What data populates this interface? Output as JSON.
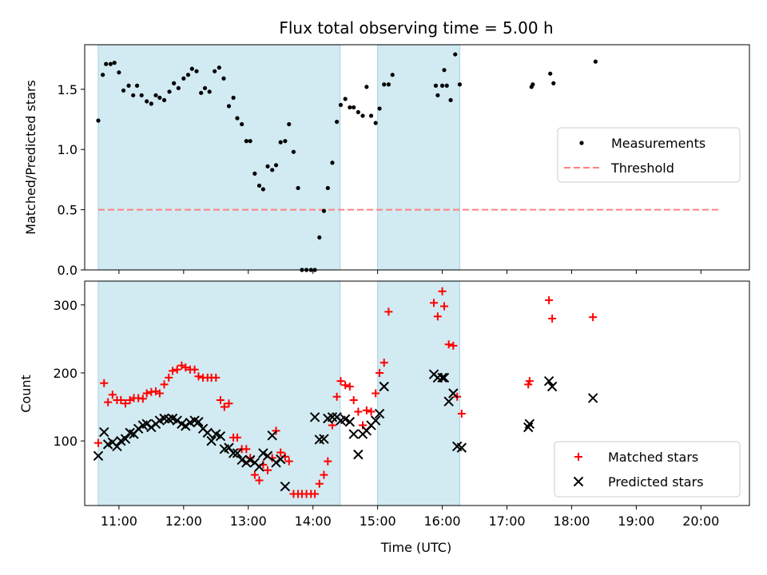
{
  "title": "Flux total observing time = 5.00 h",
  "colors": {
    "shade": "#add8e6",
    "measurement": "#000000",
    "threshold": "#ff8080",
    "matched": "#ff0000",
    "predicted": "#000000"
  },
  "chart_data": [
    {
      "type": "scatter",
      "ylabel": "Matched/Predicted stars",
      "xlim": [
        10.47,
        20.75
      ],
      "ylim": [
        0,
        1.87
      ],
      "yticks": [
        0.0,
        0.5,
        1.0,
        1.5
      ],
      "ytick_labels": [
        "0.0",
        "0.5",
        "1.0",
        "1.5"
      ],
      "shaded_intervals": [
        [
          10.68,
          14.42
        ],
        [
          15.0,
          16.27
        ]
      ],
      "legend": {
        "placement": "center-right",
        "items": [
          "Measurements",
          "Threshold"
        ]
      },
      "threshold": {
        "name": "Threshold",
        "y": 0.5,
        "x": [
          10.68,
          20.28
        ]
      },
      "series": [
        {
          "name": "Measurements",
          "marker": "dot",
          "points": [
            [
              10.68,
              1.24
            ],
            [
              10.75,
              1.62
            ],
            [
              10.8,
              1.71
            ],
            [
              10.87,
              1.71
            ],
            [
              10.93,
              1.72
            ],
            [
              11.0,
              1.64
            ],
            [
              11.07,
              1.49
            ],
            [
              11.15,
              1.53
            ],
            [
              11.22,
              1.45
            ],
            [
              11.28,
              1.53
            ],
            [
              11.35,
              1.45
            ],
            [
              11.43,
              1.4
            ],
            [
              11.5,
              1.38
            ],
            [
              11.57,
              1.45
            ],
            [
              11.63,
              1.43
            ],
            [
              11.7,
              1.41
            ],
            [
              11.78,
              1.48
            ],
            [
              11.85,
              1.55
            ],
            [
              11.92,
              1.51
            ],
            [
              12.0,
              1.59
            ],
            [
              12.07,
              1.62
            ],
            [
              12.13,
              1.67
            ],
            [
              12.2,
              1.65
            ],
            [
              12.27,
              1.47
            ],
            [
              12.33,
              1.51
            ],
            [
              12.4,
              1.48
            ],
            [
              12.48,
              1.65
            ],
            [
              12.55,
              1.68
            ],
            [
              12.62,
              1.59
            ],
            [
              12.7,
              1.36
            ],
            [
              12.77,
              1.43
            ],
            [
              12.83,
              1.26
            ],
            [
              12.9,
              1.21
            ],
            [
              12.97,
              1.07
            ],
            [
              13.03,
              1.07
            ],
            [
              13.1,
              0.8
            ],
            [
              13.17,
              0.7
            ],
            [
              13.23,
              0.67
            ],
            [
              13.3,
              0.86
            ],
            [
              13.37,
              0.83
            ],
            [
              13.43,
              0.87
            ],
            [
              13.5,
              1.06
            ],
            [
              13.57,
              1.07
            ],
            [
              13.63,
              1.21
            ],
            [
              13.7,
              0.98
            ],
            [
              13.77,
              0.68
            ],
            [
              13.83,
              0.0
            ],
            [
              13.9,
              0.0
            ],
            [
              13.97,
              0.0
            ],
            [
              14.03,
              0.0
            ],
            [
              14.1,
              0.27
            ],
            [
              14.17,
              0.49
            ],
            [
              14.23,
              0.68
            ],
            [
              14.3,
              0.89
            ],
            [
              14.37,
              1.23
            ],
            [
              14.43,
              1.37
            ],
            [
              14.5,
              1.42
            ],
            [
              14.57,
              1.35
            ],
            [
              14.63,
              1.35
            ],
            [
              14.7,
              1.31
            ],
            [
              14.77,
              1.28
            ],
            [
              14.83,
              1.52
            ],
            [
              14.9,
              1.28
            ],
            [
              14.97,
              1.22
            ],
            [
              15.03,
              1.34
            ],
            [
              15.1,
              1.54
            ],
            [
              15.17,
              1.54
            ],
            [
              15.23,
              1.62
            ],
            [
              15.9,
              1.53
            ],
            [
              15.93,
              1.45
            ],
            [
              16.0,
              1.53
            ],
            [
              16.03,
              1.66
            ],
            [
              16.07,
              1.53
            ],
            [
              16.13,
              1.41
            ],
            [
              16.2,
              1.79
            ],
            [
              16.27,
              1.54
            ],
            [
              17.38,
              1.52
            ],
            [
              17.4,
              1.54
            ],
            [
              17.67,
              1.63
            ],
            [
              17.72,
              1.55
            ],
            [
              18.37,
              1.73
            ]
          ]
        }
      ]
    },
    {
      "type": "scatter",
      "xlabel": "Time (UTC)",
      "ylabel": "Count",
      "xlim": [
        10.47,
        20.75
      ],
      "ylim": [
        5,
        335
      ],
      "yticks": [
        100,
        200,
        300
      ],
      "xticks": [
        11,
        12,
        13,
        14,
        15,
        16,
        17,
        18,
        19,
        20
      ],
      "xtick_labels": [
        "11:00",
        "12:00",
        "13:00",
        "14:00",
        "15:00",
        "16:00",
        "17:00",
        "18:00",
        "19:00",
        "20:00"
      ],
      "shaded_intervals": [
        [
          10.68,
          14.42
        ],
        [
          15.0,
          16.27
        ]
      ],
      "legend": {
        "placement": "lower-right",
        "items": [
          "Matched stars",
          "Predicted stars"
        ]
      },
      "series": [
        {
          "name": "Matched stars",
          "marker": "plus",
          "points": [
            [
              10.68,
              97
            ],
            [
              10.77,
              185
            ],
            [
              10.83,
              157
            ],
            [
              10.9,
              168
            ],
            [
              10.97,
              160
            ],
            [
              11.03,
              160
            ],
            [
              11.1,
              155
            ],
            [
              11.17,
              160
            ],
            [
              11.23,
              163
            ],
            [
              11.3,
              163
            ],
            [
              11.37,
              162
            ],
            [
              11.43,
              170
            ],
            [
              11.5,
              172
            ],
            [
              11.57,
              173
            ],
            [
              11.63,
              170
            ],
            [
              11.7,
              183
            ],
            [
              11.77,
              193
            ],
            [
              11.83,
              203
            ],
            [
              11.9,
              205
            ],
            [
              11.97,
              211
            ],
            [
              12.03,
              208
            ],
            [
              12.1,
              205
            ],
            [
              12.17,
              205
            ],
            [
              12.23,
              195
            ],
            [
              12.3,
              193
            ],
            [
              12.37,
              193
            ],
            [
              12.43,
              193
            ],
            [
              12.5,
              193
            ],
            [
              12.57,
              160
            ],
            [
              12.63,
              150
            ],
            [
              12.7,
              155
            ],
            [
              12.77,
              105
            ],
            [
              12.83,
              105
            ],
            [
              12.9,
              88
            ],
            [
              12.97,
              88
            ],
            [
              13.03,
              75
            ],
            [
              13.1,
              50
            ],
            [
              13.17,
              42
            ],
            [
              13.23,
              65
            ],
            [
              13.3,
              57
            ],
            [
              13.37,
              75
            ],
            [
              13.43,
              115
            ],
            [
              13.5,
              83
            ],
            [
              13.57,
              77
            ],
            [
              13.63,
              70
            ],
            [
              13.7,
              22
            ],
            [
              13.77,
              22
            ],
            [
              13.83,
              22
            ],
            [
              13.9,
              22
            ],
            [
              13.97,
              22
            ],
            [
              14.03,
              22
            ],
            [
              14.1,
              37
            ],
            [
              14.17,
              50
            ],
            [
              14.23,
              70
            ],
            [
              14.3,
              123
            ],
            [
              14.37,
              165
            ],
            [
              14.43,
              188
            ],
            [
              14.5,
              182
            ],
            [
              14.57,
              180
            ],
            [
              14.63,
              160
            ],
            [
              14.7,
              143
            ],
            [
              14.77,
              123
            ],
            [
              14.83,
              145
            ],
            [
              14.9,
              143
            ],
            [
              14.97,
              170
            ],
            [
              15.03,
              200
            ],
            [
              15.1,
              215
            ],
            [
              15.17,
              290
            ],
            [
              15.87,
              303
            ],
            [
              15.93,
              283
            ],
            [
              16.0,
              320
            ],
            [
              16.03,
              298
            ],
            [
              16.1,
              242
            ],
            [
              16.17,
              240
            ],
            [
              16.23,
              165
            ],
            [
              16.3,
              140
            ],
            [
              17.33,
              183
            ],
            [
              17.35,
              188
            ],
            [
              17.65,
              307
            ],
            [
              17.7,
              280
            ],
            [
              18.33,
              282
            ]
          ]
        },
        {
          "name": "Predicted stars",
          "marker": "x",
          "points": [
            [
              10.68,
              78
            ],
            [
              10.77,
              113
            ],
            [
              10.83,
              95
            ],
            [
              10.9,
              98
            ],
            [
              10.97,
              92
            ],
            [
              11.03,
              100
            ],
            [
              11.1,
              103
            ],
            [
              11.17,
              112
            ],
            [
              11.23,
              110
            ],
            [
              11.3,
              118
            ],
            [
              11.37,
              123
            ],
            [
              11.43,
              125
            ],
            [
              11.5,
              120
            ],
            [
              11.57,
              125
            ],
            [
              11.63,
              130
            ],
            [
              11.7,
              133
            ],
            [
              11.77,
              132
            ],
            [
              11.83,
              133
            ],
            [
              11.9,
              130
            ],
            [
              11.97,
              125
            ],
            [
              12.03,
              122
            ],
            [
              12.1,
              127
            ],
            [
              12.17,
              130
            ],
            [
              12.23,
              128
            ],
            [
              12.3,
              118
            ],
            [
              12.37,
              112
            ],
            [
              12.43,
              100
            ],
            [
              12.5,
              110
            ],
            [
              12.57,
              107
            ],
            [
              12.63,
              88
            ],
            [
              12.7,
              90
            ],
            [
              12.77,
              82
            ],
            [
              12.83,
              82
            ],
            [
              12.9,
              72
            ],
            [
              12.97,
              68
            ],
            [
              13.03,
              72
            ],
            [
              13.1,
              68
            ],
            [
              13.17,
              62
            ],
            [
              13.23,
              82
            ],
            [
              13.3,
              78
            ],
            [
              13.37,
              108
            ],
            [
              13.43,
              68
            ],
            [
              13.5,
              73
            ],
            [
              13.57,
              33
            ],
            [
              14.03,
              135
            ],
            [
              14.1,
              102
            ],
            [
              14.17,
              103
            ],
            [
              14.23,
              133
            ],
            [
              14.3,
              135
            ],
            [
              14.37,
              135
            ],
            [
              14.43,
              130
            ],
            [
              14.5,
              132
            ],
            [
              14.57,
              128
            ],
            [
              14.63,
              110
            ],
            [
              14.7,
              80
            ],
            [
              14.77,
              110
            ],
            [
              14.83,
              115
            ],
            [
              14.9,
              123
            ],
            [
              14.97,
              130
            ],
            [
              15.03,
              140
            ],
            [
              15.1,
              180
            ],
            [
              15.87,
              198
            ],
            [
              15.93,
              193
            ],
            [
              16.0,
              193
            ],
            [
              16.03,
              193
            ],
            [
              16.1,
              158
            ],
            [
              16.17,
              170
            ],
            [
              16.23,
              92
            ],
            [
              16.3,
              90
            ],
            [
              17.33,
              120
            ],
            [
              17.35,
              125
            ],
            [
              17.65,
              188
            ],
            [
              17.7,
              180
            ],
            [
              18.33,
              163
            ]
          ]
        }
      ]
    }
  ]
}
